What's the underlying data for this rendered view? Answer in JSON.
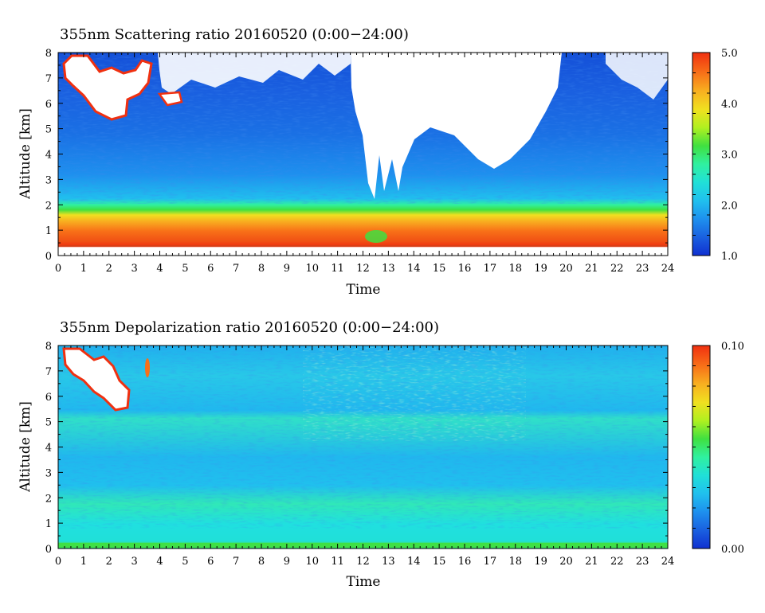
{
  "colors": {
    "scale": [
      "#1030d0",
      "#1a60e0",
      "#1e90ee",
      "#20c0ee",
      "#20e0d8",
      "#30f0a0",
      "#40e040",
      "#b0f020",
      "#f0e020",
      "#f8b020",
      "#f87018",
      "#f03010"
    ],
    "white_cloud": "#ffffff",
    "cloud_outline": "#f03010"
  },
  "chart_data": [
    {
      "type": "heatmap",
      "title": "355nm Scattering ratio  20160520 (0:00−24:00)",
      "xlabel": "Time",
      "ylabel": "Altitude [km]",
      "xlim": [
        0,
        24
      ],
      "ylim": [
        0,
        8
      ],
      "x_ticks": [
        "0",
        "1",
        "2",
        "3",
        "4",
        "5",
        "6",
        "7",
        "8",
        "9",
        "10",
        "11",
        "12",
        "13",
        "14",
        "15",
        "16",
        "17",
        "18",
        "19",
        "20",
        "21",
        "22",
        "23",
        "24"
      ],
      "y_ticks": [
        "0",
        "1",
        "2",
        "3",
        "4",
        "5",
        "6",
        "7",
        "8"
      ],
      "colorbar": {
        "min": 1.0,
        "max": 5.0,
        "labels": [
          "5.0",
          "4.0",
          "3.0",
          "2.0",
          "1.0"
        ],
        "label_values": [
          5.0,
          4.0,
          3.0,
          2.0,
          1.0
        ]
      },
      "profile": [
        {
          "altitude_km": 0.3,
          "value": 5.0
        },
        {
          "altitude_km": 0.6,
          "value": 4.6
        },
        {
          "altitude_km": 1.0,
          "value": 4.2
        },
        {
          "altitude_km": 1.4,
          "value": 3.6
        },
        {
          "altitude_km": 1.8,
          "value": 2.9
        },
        {
          "altitude_km": 2.2,
          "value": 2.0
        },
        {
          "altitude_km": 3.0,
          "value": 1.8
        },
        {
          "altitude_km": 4.5,
          "value": 1.5
        },
        {
          "altitude_km": 6.0,
          "value": 1.3
        },
        {
          "altitude_km": 7.5,
          "value": 1.2
        }
      ]
    },
    {
      "type": "heatmap",
      "title": "355nm Depolarization ratio  20160520 (0:00−24:00)",
      "xlabel": "Time",
      "ylabel": "Altitude [km]",
      "xlim": [
        0,
        24
      ],
      "ylim": [
        0,
        8
      ],
      "x_ticks": [
        "0",
        "1",
        "2",
        "3",
        "4",
        "5",
        "6",
        "7",
        "8",
        "9",
        "10",
        "11",
        "12",
        "13",
        "14",
        "15",
        "16",
        "17",
        "18",
        "19",
        "20",
        "21",
        "22",
        "23",
        "24"
      ],
      "y_ticks": [
        "0",
        "1",
        "2",
        "3",
        "4",
        "5",
        "6",
        "7",
        "8"
      ],
      "colorbar": {
        "min": 0.0,
        "max": 0.1,
        "labels": [
          "0.10",
          "0.00"
        ],
        "label_values": [
          0.1,
          0.0
        ]
      },
      "profile": [
        {
          "altitude_km": 0.1,
          "value": 0.05
        },
        {
          "altitude_km": 1.0,
          "value": 0.028
        },
        {
          "altitude_km": 2.0,
          "value": 0.035
        },
        {
          "altitude_km": 3.5,
          "value": 0.025
        },
        {
          "altitude_km": 5.2,
          "value": 0.03
        },
        {
          "altitude_km": 7.0,
          "value": 0.022
        }
      ]
    }
  ]
}
